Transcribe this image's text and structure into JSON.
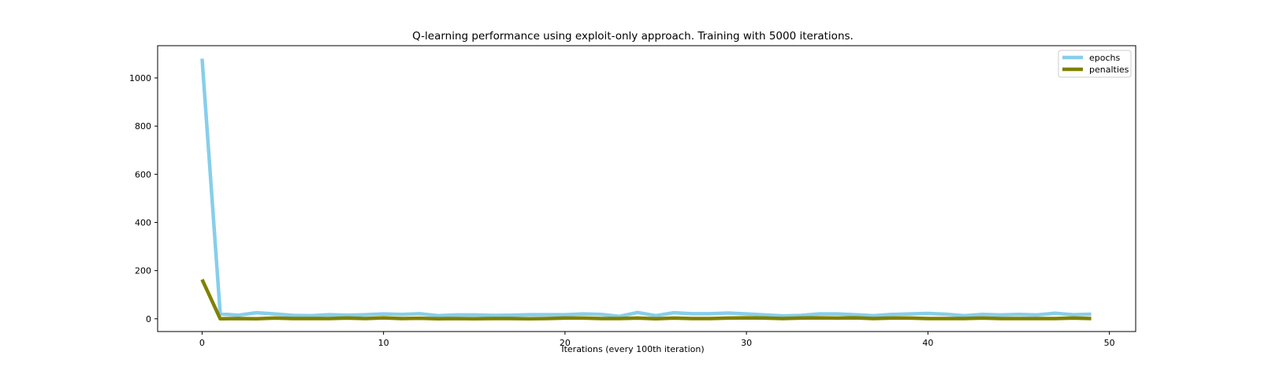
{
  "chart_data": {
    "type": "line",
    "title": "Q-learning performance using exploit-only approach. Training with 5000 iterations.",
    "xlabel": "Iterations (every 100th iteration)",
    "ylabel": "",
    "xlim": [
      -2.45,
      51.45
    ],
    "ylim": [
      -53,
      1134
    ],
    "xticks": [
      0,
      10,
      20,
      30,
      40,
      50
    ],
    "yticks": [
      0,
      200,
      400,
      600,
      800,
      1000
    ],
    "grid": false,
    "legend": "top-right",
    "x": [
      0,
      1,
      2,
      3,
      4,
      5,
      6,
      7,
      8,
      9,
      10,
      11,
      12,
      13,
      14,
      15,
      16,
      17,
      18,
      19,
      20,
      21,
      22,
      23,
      24,
      25,
      26,
      27,
      28,
      29,
      30,
      31,
      32,
      33,
      34,
      35,
      36,
      37,
      38,
      39,
      40,
      41,
      42,
      43,
      44,
      45,
      46,
      47,
      48,
      49
    ],
    "series": [
      {
        "name": "epochs",
        "color": "#87ceeb",
        "values": [
          1080,
          20,
          15,
          25,
          20,
          14,
          13,
          17,
          15,
          17,
          20,
          18,
          21,
          13,
          16,
          16,
          14,
          15,
          17,
          17,
          17,
          20,
          18,
          10,
          26,
          13,
          25,
          21,
          21,
          24,
          20,
          16,
          12,
          14,
          20,
          20,
          17,
          13,
          18,
          20,
          22,
          19,
          13,
          18,
          16,
          18,
          16,
          23,
          17,
          19
        ]
      },
      {
        "name": "penalties",
        "color": "#808000",
        "values": [
          163,
          0,
          1,
          0,
          3,
          1,
          1,
          1,
          3,
          1,
          4,
          1,
          2,
          0,
          1,
          0,
          1,
          1,
          0,
          1,
          3,
          3,
          1,
          1,
          3,
          0,
          3,
          1,
          1,
          3,
          4,
          3,
          1,
          3,
          4,
          3,
          4,
          1,
          3,
          3,
          1,
          1,
          1,
          3,
          1,
          1,
          1,
          1,
          3,
          1
        ]
      }
    ]
  }
}
